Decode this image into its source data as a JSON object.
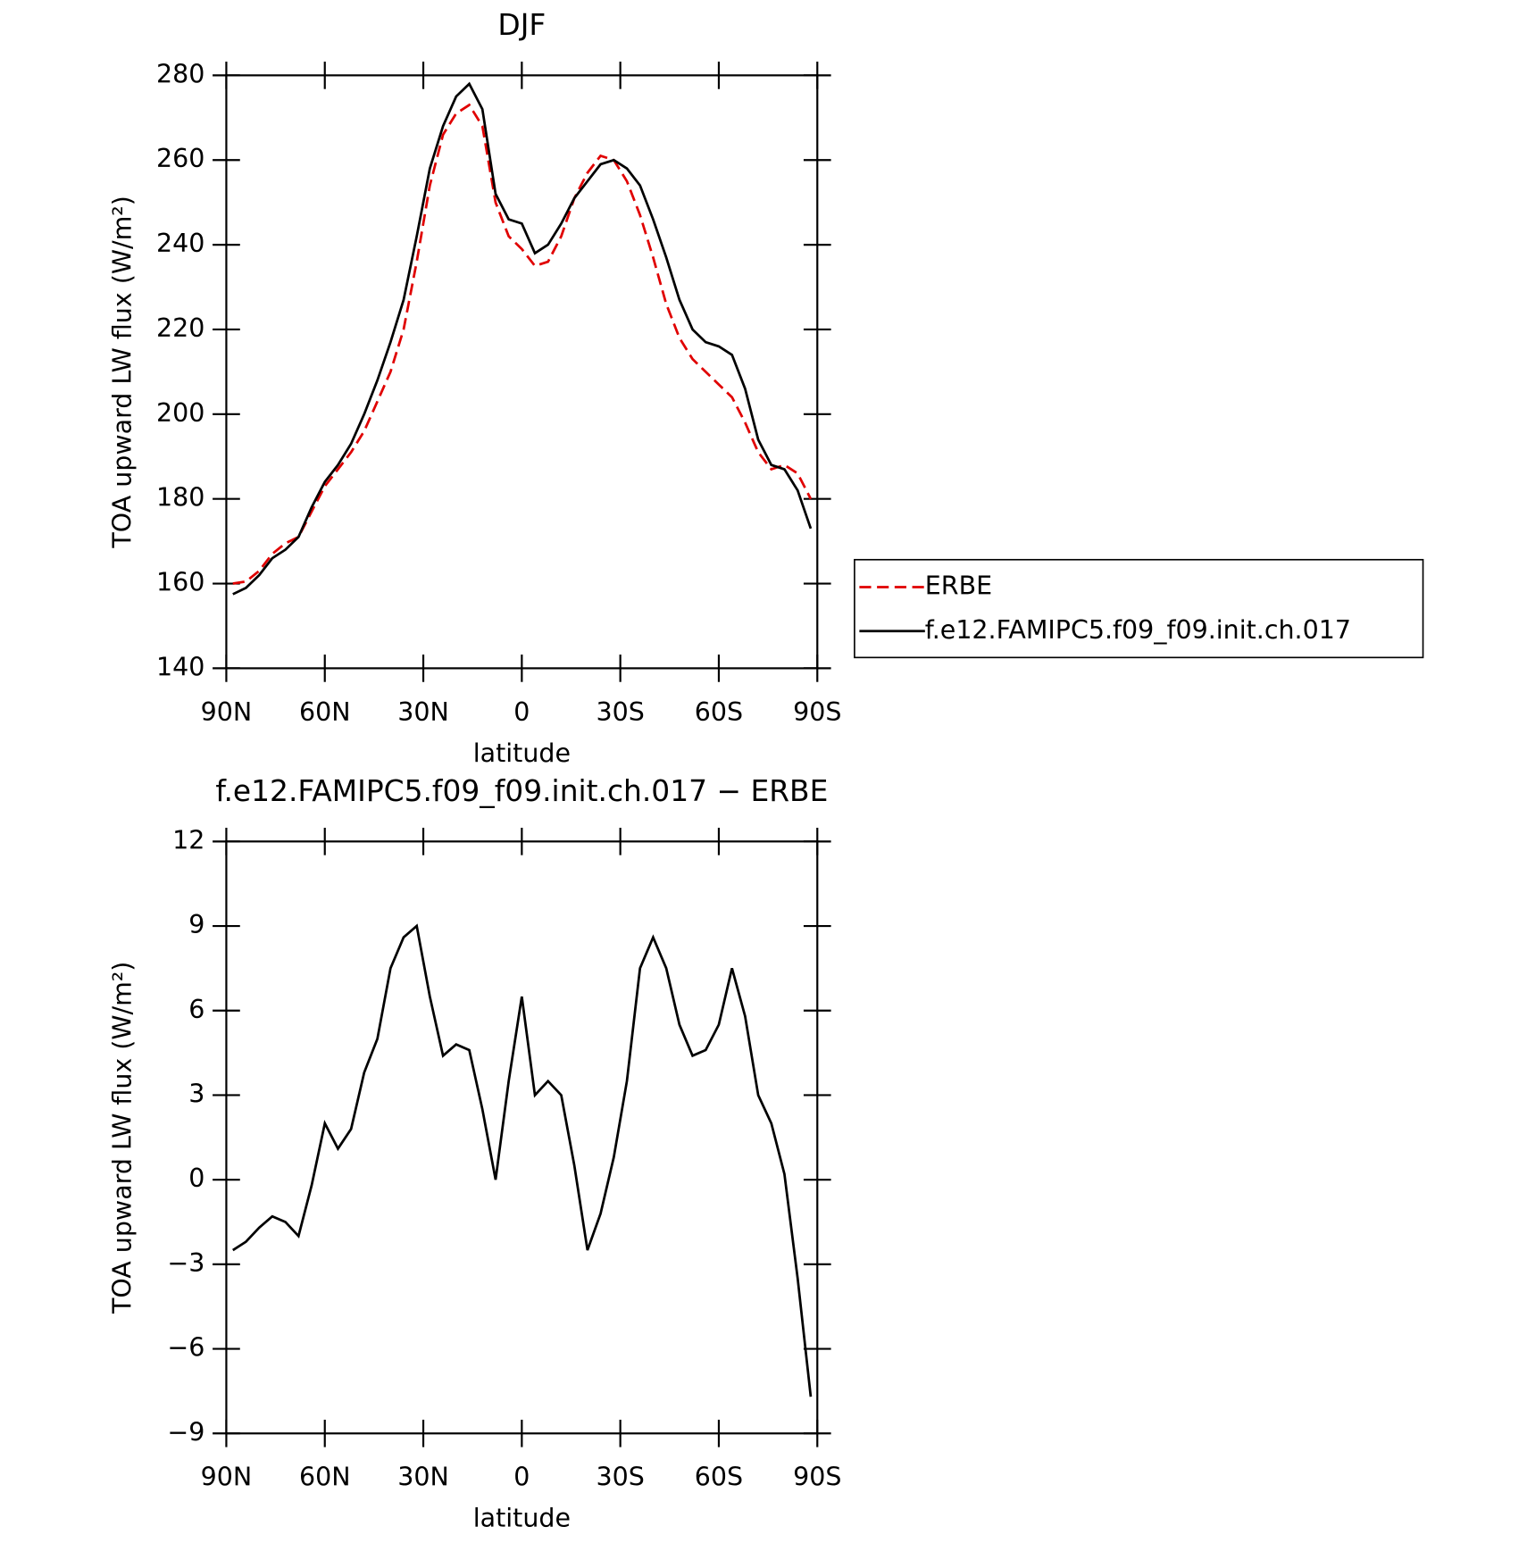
{
  "chart_data": [
    {
      "type": "line",
      "title": "DJF",
      "xlabel": "latitude",
      "ylabel": "TOA upward LW flux (W/m²)",
      "x": [
        88,
        84,
        80,
        76,
        72,
        68,
        64,
        60,
        56,
        52,
        48,
        44,
        40,
        36,
        32,
        28,
        24,
        20,
        16,
        12,
        8,
        4,
        0,
        -4,
        -8,
        -12,
        -16,
        -20,
        -24,
        -28,
        -32,
        -36,
        -40,
        -44,
        -48,
        -52,
        -56,
        -60,
        -64,
        -68,
        -72,
        -76,
        -80,
        -84,
        -88
      ],
      "series": [
        {
          "name": "ERBE",
          "color": "#e00000",
          "dash": true,
          "values": [
            160,
            160.5,
            163,
            167,
            169.5,
            171,
            177,
            183,
            187,
            191,
            196,
            203,
            210,
            220,
            236,
            254,
            266,
            271,
            273,
            268,
            250,
            242,
            239,
            235,
            236,
            242,
            251,
            257,
            261,
            260,
            255,
            247,
            237,
            226,
            218,
            213,
            210,
            207,
            204,
            198,
            191,
            187,
            188,
            186,
            180
          ]
        },
        {
          "name": "f.e12.FAMIPC5.f09_f09.init.ch.017",
          "color": "#000000",
          "dash": false,
          "values": [
            157.5,
            159,
            162,
            166,
            168,
            171,
            178,
            184,
            188,
            193,
            200,
            208,
            217,
            227,
            242,
            258,
            268,
            275,
            278,
            272,
            252,
            246,
            245,
            238,
            240,
            245,
            251,
            255,
            259,
            260,
            258,
            254,
            246,
            237,
            227,
            220,
            217,
            216,
            214,
            206,
            194,
            188,
            187,
            182,
            173
          ]
        }
      ],
      "xlim": [
        90,
        -90
      ],
      "xticks": [
        {
          "value": 90,
          "label": "90N"
        },
        {
          "value": 60,
          "label": "60N"
        },
        {
          "value": 30,
          "label": "30N"
        },
        0,
        {
          "value": -30,
          "label": "30S"
        },
        {
          "value": -60,
          "label": "60S"
        },
        {
          "value": -90,
          "label": "90S"
        }
      ],
      "ylim": [
        140,
        280
      ],
      "yticks": [
        140,
        160,
        180,
        200,
        220,
        240,
        260,
        280
      ],
      "legend": "right"
    },
    {
      "type": "line",
      "title": "f.e12.FAMIPC5.f09_f09.init.ch.017 − ERBE",
      "xlabel": "latitude",
      "ylabel": "TOA upward LW flux (W/m²)",
      "x": [
        88,
        84,
        80,
        76,
        72,
        68,
        64,
        60,
        56,
        52,
        48,
        44,
        40,
        36,
        32,
        28,
        24,
        20,
        16,
        12,
        8,
        4,
        0,
        -4,
        -8,
        -12,
        -16,
        -20,
        -24,
        -28,
        -32,
        -36,
        -40,
        -44,
        -48,
        -52,
        -56,
        -60,
        -64,
        -68,
        -72,
        -76,
        -80,
        -84,
        -88
      ],
      "series": [
        {
          "color": "#000000",
          "dash": false,
          "values": [
            -2.5,
            -2.2,
            -1.7,
            -1.3,
            -1.5,
            -2.0,
            -0.2,
            2.0,
            1.1,
            1.8,
            3.8,
            5.0,
            7.5,
            8.6,
            9.0,
            6.5,
            4.4,
            4.8,
            4.6,
            2.5,
            0,
            3.5,
            6.5,
            3.0,
            3.5,
            3.0,
            0.5,
            -2.5,
            -1.2,
            0.8,
            3.5,
            7.5,
            8.6,
            7.5,
            5.5,
            4.4,
            4.6,
            5.5,
            7.5,
            5.8,
            3.0,
            2.0,
            0.2,
            -3.5,
            -7.7
          ]
        }
      ],
      "xlim": [
        90,
        -90
      ],
      "xticks": [
        {
          "value": 90,
          "label": "90N"
        },
        {
          "value": 60,
          "label": "60N"
        },
        {
          "value": 30,
          "label": "30N"
        },
        0,
        {
          "value": -30,
          "label": "30S"
        },
        {
          "value": -60,
          "label": "60S"
        },
        {
          "value": -90,
          "label": "90S"
        }
      ],
      "ylim": [
        -9,
        12
      ],
      "yticks": [
        {
          "value": -9,
          "label": "−9"
        },
        {
          "value": -6,
          "label": "−6"
        },
        {
          "value": -3,
          "label": "−3"
        },
        0,
        3,
        6,
        9,
        12
      ]
    }
  ]
}
